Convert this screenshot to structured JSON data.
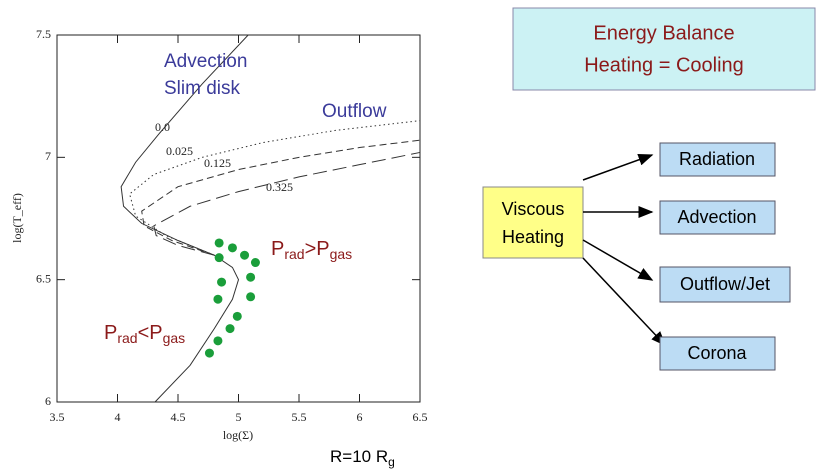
{
  "chart_data": {
    "type": "line",
    "xlabel": "log(Σ)",
    "ylabel": "log(T_eff)",
    "xlim": [
      3.5,
      6.5
    ],
    "xticks": [
      3.5,
      4,
      4.5,
      5,
      5.5,
      6,
      6.5
    ],
    "ylim": [
      6,
      7.5
    ],
    "yticks": [
      6,
      6.5,
      7,
      7.5
    ],
    "series": [
      {
        "name": "0.0",
        "color": "#333333",
        "style": "solid",
        "x": [
          5.08,
          4.7,
          4.35,
          4.15,
          4.03,
          4.05,
          4.2,
          4.5,
          4.8,
          4.95,
          5.0,
          4.95,
          4.8,
          4.6,
          4.31
        ],
        "values": [
          7.5,
          7.3,
          7.1,
          6.98,
          6.88,
          6.8,
          6.73,
          6.66,
          6.6,
          6.55,
          6.5,
          6.42,
          6.3,
          6.15,
          6.0
        ]
      },
      {
        "name": "0.025",
        "color": "#333333",
        "style": "dotted",
        "x": [
          4.8,
          4.4,
          4.15,
          4.1,
          4.3,
          4.7,
          5.2,
          5.8,
          6.5
        ],
        "values": [
          6.6,
          6.68,
          6.76,
          6.85,
          6.93,
          7.0,
          7.06,
          7.11,
          7.15
        ]
      },
      {
        "name": "0.125",
        "color": "#333333",
        "style": "dashed",
        "x": [
          4.8,
          4.45,
          4.22,
          4.2,
          4.5,
          5.0,
          5.5,
          6.0,
          6.5
        ],
        "values": [
          6.6,
          6.66,
          6.72,
          6.78,
          6.88,
          6.95,
          7.0,
          7.04,
          7.07
        ]
      },
      {
        "name": "0.325",
        "color": "#333333",
        "style": "longdash",
        "x": [
          4.8,
          4.5,
          4.32,
          4.3,
          4.6,
          5.0,
          5.5,
          6.0,
          6.5
        ],
        "values": [
          6.6,
          6.64,
          6.68,
          6.72,
          6.8,
          6.86,
          6.92,
          6.97,
          7.02
        ]
      },
      {
        "color": "#1a9e3a",
        "style": "dots",
        "x": [
          4.84,
          4.95,
          5.05,
          5.14,
          4.84,
          5.1,
          4.86,
          5.1,
          4.83,
          4.99,
          4.93,
          4.83,
          4.76
        ],
        "values": [
          6.65,
          6.63,
          6.6,
          6.57,
          6.59,
          6.51,
          6.49,
          6.43,
          6.42,
          6.35,
          6.3,
          6.25,
          6.2
        ]
      }
    ],
    "annotations": [
      "Advection",
      "Slim disk",
      "Outflow"
    ],
    "prad_gt": [
      "P",
      "rad",
      ">P",
      "gas"
    ],
    "prad_lt": [
      "P",
      "rad",
      "<P",
      "gas"
    ],
    "radius": [
      "R=10 R",
      "g"
    ]
  },
  "diagram": {
    "balance": [
      "Energy Balance",
      "Heating = Cooling"
    ],
    "source": [
      "Viscous",
      "Heating"
    ],
    "outputs": [
      "Radiation",
      "Advection",
      "Outflow/Jet",
      "Corona"
    ]
  }
}
